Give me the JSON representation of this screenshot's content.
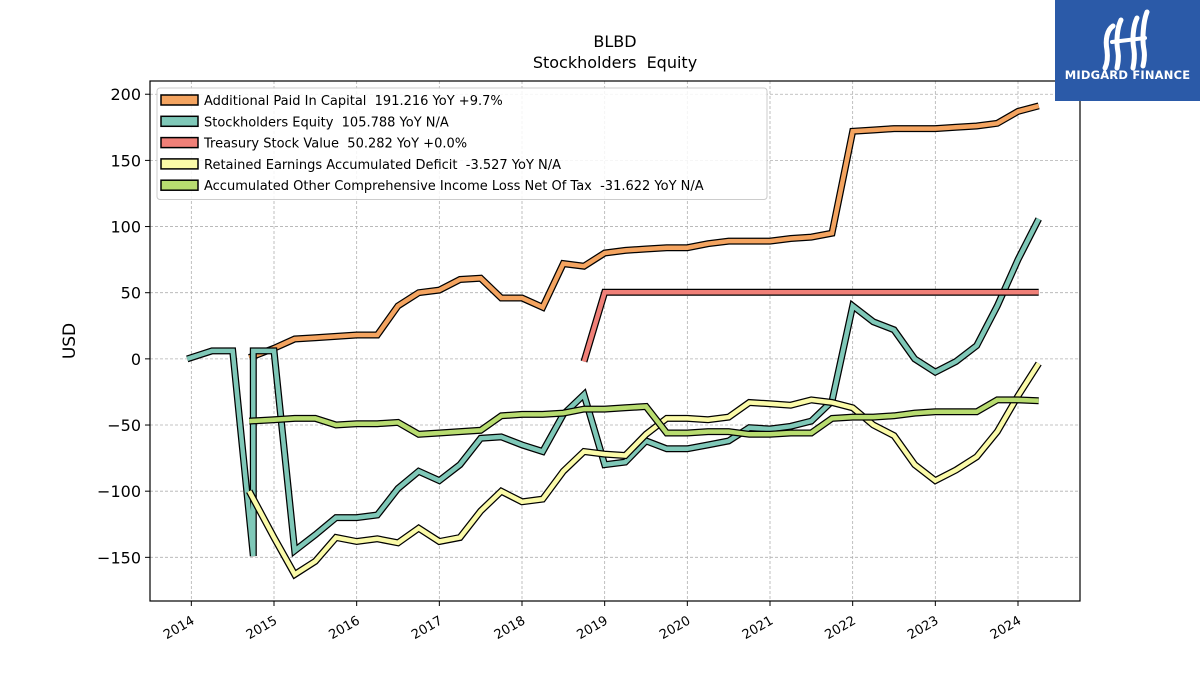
{
  "brand": {
    "name": "MIDGARD FINANCE",
    "color": "#2b5aa8"
  },
  "chart_data": {
    "type": "line",
    "title": "BLBD",
    "subtitle": "Stockholders  Equity",
    "xlabel": "",
    "ylabel": "USD",
    "xlim": [
      2013.5,
      2024.75
    ],
    "ylim": [
      -183,
      210
    ],
    "x_ticks": [
      2014,
      2015,
      2016,
      2017,
      2018,
      2019,
      2020,
      2021,
      2022,
      2023,
      2024
    ],
    "x_tick_labels": [
      "2014",
      "2015",
      "2016",
      "2017",
      "2018",
      "2019",
      "2020",
      "2021",
      "2022",
      "2023",
      "2024"
    ],
    "y_ticks": [
      -150,
      -100,
      -50,
      0,
      50,
      100,
      150,
      200
    ],
    "y_tick_labels": [
      "−150",
      "−100",
      "−50",
      "0",
      "50",
      "100",
      "150",
      "200"
    ],
    "grid": true,
    "legend_position": "top-left",
    "series": [
      {
        "name": "Additional Paid In Capital  191.216 YoY +9.7%",
        "color": "#f4a460",
        "points": [
          [
            2014.7,
            1
          ],
          [
            2014.75,
            2
          ],
          [
            2015.0,
            8
          ],
          [
            2015.25,
            15
          ],
          [
            2015.5,
            16
          ],
          [
            2015.75,
            17
          ],
          [
            2016.0,
            18
          ],
          [
            2016.25,
            18
          ],
          [
            2016.5,
            40
          ],
          [
            2016.75,
            50
          ],
          [
            2017.0,
            52
          ],
          [
            2017.25,
            60
          ],
          [
            2017.5,
            61
          ],
          [
            2017.75,
            46
          ],
          [
            2018.0,
            46
          ],
          [
            2018.25,
            39
          ],
          [
            2018.5,
            72
          ],
          [
            2018.75,
            70
          ],
          [
            2019.0,
            80
          ],
          [
            2019.25,
            82
          ],
          [
            2019.5,
            83
          ],
          [
            2019.75,
            84
          ],
          [
            2020.0,
            84
          ],
          [
            2020.25,
            87
          ],
          [
            2020.5,
            89
          ],
          [
            2020.75,
            89
          ],
          [
            2021.0,
            89
          ],
          [
            2021.25,
            91
          ],
          [
            2021.5,
            92
          ],
          [
            2021.75,
            95
          ],
          [
            2022.0,
            172
          ],
          [
            2022.25,
            173
          ],
          [
            2022.5,
            174
          ],
          [
            2022.75,
            174
          ],
          [
            2023.0,
            174
          ],
          [
            2023.25,
            175
          ],
          [
            2023.5,
            176
          ],
          [
            2023.75,
            178
          ],
          [
            2024.0,
            187
          ],
          [
            2024.25,
            191.2
          ]
        ]
      },
      {
        "name": "Stockholders Equity  105.788 YoY N/A",
        "color": "#7fc8b8",
        "points": [
          [
            2013.95,
            0
          ],
          [
            2014.25,
            6
          ],
          [
            2014.5,
            6
          ],
          [
            2014.75,
            -149
          ],
          [
            2014.75,
            6
          ],
          [
            2015.0,
            6
          ],
          [
            2015.25,
            -145
          ],
          [
            2015.5,
            -133
          ],
          [
            2015.75,
            -120
          ],
          [
            2016.0,
            -120
          ],
          [
            2016.25,
            -118
          ],
          [
            2016.5,
            -98
          ],
          [
            2016.75,
            -85
          ],
          [
            2017.0,
            -92
          ],
          [
            2017.25,
            -80
          ],
          [
            2017.5,
            -60
          ],
          [
            2017.75,
            -59
          ],
          [
            2018.0,
            -65
          ],
          [
            2018.25,
            -70
          ],
          [
            2018.5,
            -42
          ],
          [
            2018.75,
            -27
          ],
          [
            2019.0,
            -80
          ],
          [
            2019.25,
            -78
          ],
          [
            2019.5,
            -62
          ],
          [
            2019.75,
            -68
          ],
          [
            2020.0,
            -68
          ],
          [
            2020.25,
            -65
          ],
          [
            2020.5,
            -62
          ],
          [
            2020.75,
            -52
          ],
          [
            2021.0,
            -53
          ],
          [
            2021.25,
            -51
          ],
          [
            2021.5,
            -47
          ],
          [
            2021.75,
            -32
          ],
          [
            2022.0,
            40
          ],
          [
            2022.25,
            28
          ],
          [
            2022.5,
            22
          ],
          [
            2022.75,
            0
          ],
          [
            2023.0,
            -10
          ],
          [
            2023.25,
            -2
          ],
          [
            2023.5,
            10
          ],
          [
            2023.75,
            40
          ],
          [
            2024.0,
            75
          ],
          [
            2024.25,
            105.8
          ]
        ]
      },
      {
        "name": "Treasury Stock Value  50.282 YoY +0.0%",
        "color": "#f08078",
        "points": [
          [
            2018.75,
            -2
          ],
          [
            2019.0,
            50.3
          ],
          [
            2019.25,
            50.3
          ],
          [
            2020.0,
            50.3
          ],
          [
            2021.0,
            50.3
          ],
          [
            2022.0,
            50.3
          ],
          [
            2023.0,
            50.3
          ],
          [
            2024.0,
            50.3
          ],
          [
            2024.25,
            50.3
          ]
        ]
      },
      {
        "name": "Retained Earnings Accumulated Deficit  -3.527 YoY N/A",
        "color": "#fafaa8",
        "points": [
          [
            2014.7,
            -100
          ],
          [
            2015.0,
            -135
          ],
          [
            2015.25,
            -163
          ],
          [
            2015.5,
            -153
          ],
          [
            2015.75,
            -135
          ],
          [
            2016.0,
            -138
          ],
          [
            2016.25,
            -136
          ],
          [
            2016.5,
            -139
          ],
          [
            2016.75,
            -128
          ],
          [
            2017.0,
            -138
          ],
          [
            2017.25,
            -135
          ],
          [
            2017.5,
            -115
          ],
          [
            2017.75,
            -100
          ],
          [
            2018.0,
            -108
          ],
          [
            2018.25,
            -106
          ],
          [
            2018.5,
            -85
          ],
          [
            2018.75,
            -70
          ],
          [
            2019.0,
            -72
          ],
          [
            2019.25,
            -73
          ],
          [
            2019.5,
            -57
          ],
          [
            2019.75,
            -45
          ],
          [
            2020.0,
            -45
          ],
          [
            2020.25,
            -46
          ],
          [
            2020.5,
            -44
          ],
          [
            2020.75,
            -33
          ],
          [
            2021.0,
            -34
          ],
          [
            2021.25,
            -35
          ],
          [
            2021.5,
            -31
          ],
          [
            2021.75,
            -33
          ],
          [
            2022.0,
            -37
          ],
          [
            2022.25,
            -50
          ],
          [
            2022.5,
            -58
          ],
          [
            2022.75,
            -80
          ],
          [
            2023.0,
            -92
          ],
          [
            2023.25,
            -84
          ],
          [
            2023.5,
            -74
          ],
          [
            2023.75,
            -55
          ],
          [
            2024.0,
            -28
          ],
          [
            2024.25,
            -3.5
          ]
        ]
      },
      {
        "name": "Accumulated Other Comprehensive Income Loss Net Of Tax  -31.622 YoY N/A",
        "color": "#b8dc70",
        "points": [
          [
            2014.7,
            -47
          ],
          [
            2015.0,
            -46
          ],
          [
            2015.25,
            -45
          ],
          [
            2015.5,
            -45
          ],
          [
            2015.75,
            -50
          ],
          [
            2016.0,
            -49
          ],
          [
            2016.25,
            -49
          ],
          [
            2016.5,
            -48
          ],
          [
            2016.75,
            -57
          ],
          [
            2017.0,
            -56
          ],
          [
            2017.25,
            -55
          ],
          [
            2017.5,
            -54
          ],
          [
            2017.75,
            -43
          ],
          [
            2018.0,
            -42
          ],
          [
            2018.25,
            -42
          ],
          [
            2018.5,
            -41
          ],
          [
            2018.75,
            -38
          ],
          [
            2019.0,
            -38
          ],
          [
            2019.25,
            -37
          ],
          [
            2019.5,
            -36
          ],
          [
            2019.75,
            -56
          ],
          [
            2020.0,
            -56
          ],
          [
            2020.25,
            -55
          ],
          [
            2020.5,
            -55
          ],
          [
            2020.75,
            -57
          ],
          [
            2021.0,
            -57
          ],
          [
            2021.25,
            -56
          ],
          [
            2021.5,
            -56
          ],
          [
            2021.75,
            -45
          ],
          [
            2022.0,
            -44
          ],
          [
            2022.25,
            -44
          ],
          [
            2022.5,
            -43
          ],
          [
            2022.75,
            -41
          ],
          [
            2023.0,
            -40
          ],
          [
            2023.25,
            -40
          ],
          [
            2023.5,
            -40
          ],
          [
            2023.75,
            -31
          ],
          [
            2024.0,
            -31
          ],
          [
            2024.25,
            -31.6
          ]
        ]
      }
    ]
  }
}
